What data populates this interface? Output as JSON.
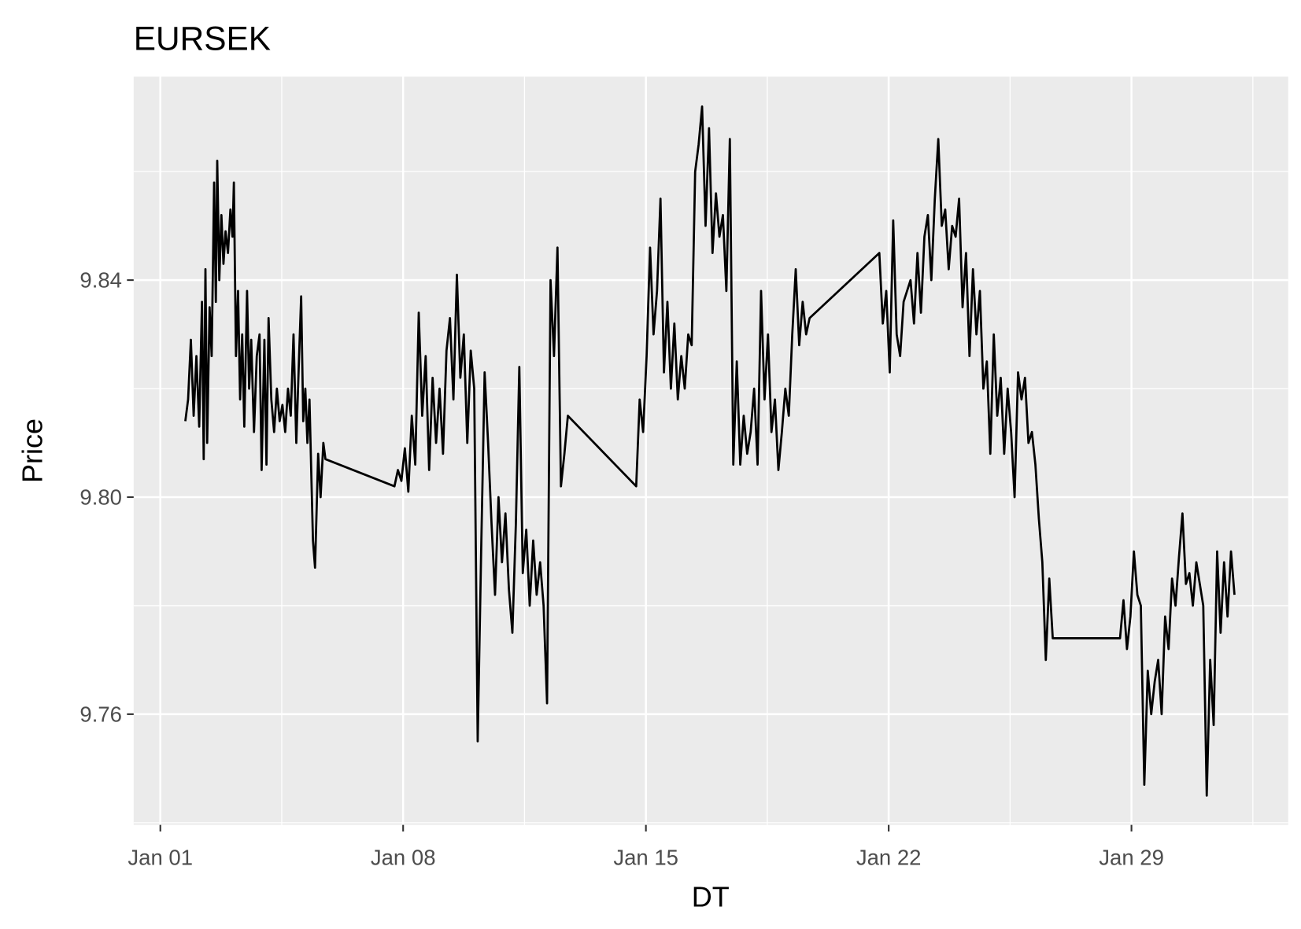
{
  "chart_data": {
    "type": "line",
    "title": "EURSEK",
    "x_label": "DT",
    "y_label": "Price",
    "color": "#000000",
    "grid": true,
    "xlim": [
      0.23,
      33.52
    ],
    "ylim": [
      9.7396,
      9.8775
    ],
    "xticks": [
      {
        "value": 1,
        "label": "Jan 01"
      },
      {
        "value": 8,
        "label": "Jan 08"
      },
      {
        "value": 15,
        "label": "Jan 15"
      },
      {
        "value": 22,
        "label": "Jan 22"
      },
      {
        "value": 29,
        "label": "Jan 29"
      }
    ],
    "yticks": [
      {
        "value": 9.76,
        "label": "9.76"
      },
      {
        "value": 9.8,
        "label": "9.80"
      },
      {
        "value": 9.84,
        "label": "9.84"
      }
    ],
    "x_minor_ticks": [
      4.5,
      11.5,
      18.5,
      25.5,
      32.5
    ],
    "y_minor_ticks": [
      9.74,
      9.78,
      9.82,
      9.86
    ],
    "x": [
      1.72,
      1.8,
      1.88,
      1.96,
      2.04,
      2.12,
      2.2,
      2.25,
      2.3,
      2.35,
      2.42,
      2.48,
      2.55,
      2.6,
      2.64,
      2.7,
      2.76,
      2.82,
      2.88,
      2.95,
      3.02,
      3.08,
      3.12,
      3.18,
      3.24,
      3.3,
      3.36,
      3.42,
      3.5,
      3.56,
      3.62,
      3.7,
      3.78,
      3.86,
      3.92,
      4.0,
      4.06,
      4.12,
      4.2,
      4.28,
      4.36,
      4.44,
      4.52,
      4.6,
      4.68,
      4.76,
      4.84,
      4.92,
      5.0,
      5.06,
      5.12,
      5.18,
      5.24,
      5.3,
      5.4,
      5.46,
      5.55,
      5.62,
      5.7,
      5.76,
      7.75,
      7.85,
      7.95,
      8.05,
      8.15,
      8.25,
      8.35,
      8.45,
      8.55,
      8.65,
      8.75,
      8.85,
      8.95,
      9.05,
      9.15,
      9.25,
      9.35,
      9.45,
      9.55,
      9.65,
      9.75,
      9.85,
      9.95,
      10.05,
      10.15,
      10.25,
      10.35,
      10.45,
      10.55,
      10.65,
      10.75,
      10.85,
      10.95,
      11.05,
      11.15,
      11.25,
      11.35,
      11.45,
      11.55,
      11.65,
      11.75,
      11.85,
      11.95,
      12.05,
      12.15,
      12.25,
      12.35,
      12.45,
      12.55,
      12.65,
      12.75,
      14.72,
      14.82,
      14.92,
      15.02,
      15.12,
      15.22,
      15.32,
      15.42,
      15.52,
      15.62,
      15.72,
      15.82,
      15.92,
      16.02,
      16.12,
      16.22,
      16.32,
      16.42,
      16.52,
      16.62,
      16.72,
      16.82,
      16.92,
      17.02,
      17.12,
      17.22,
      17.32,
      17.42,
      17.52,
      17.62,
      17.72,
      17.82,
      17.92,
      18.02,
      18.12,
      18.22,
      18.32,
      18.42,
      18.52,
      18.62,
      18.72,
      18.82,
      18.92,
      19.02,
      19.12,
      19.22,
      19.32,
      19.42,
      19.52,
      19.62,
      19.72,
      21.73,
      21.83,
      21.93,
      22.03,
      22.13,
      22.23,
      22.33,
      22.43,
      22.53,
      22.63,
      22.73,
      22.83,
      22.93,
      23.03,
      23.13,
      23.23,
      23.33,
      23.43,
      23.53,
      23.63,
      23.73,
      23.83,
      23.93,
      24.03,
      24.13,
      24.23,
      24.33,
      24.43,
      24.53,
      24.63,
      24.73,
      24.83,
      24.93,
      25.03,
      25.13,
      25.23,
      25.33,
      25.43,
      25.53,
      25.63,
      25.73,
      25.83,
      25.93,
      26.03,
      26.13,
      26.23,
      26.33,
      26.43,
      26.53,
      26.63,
      26.73,
      28.67,
      28.77,
      28.87,
      28.97,
      29.07,
      29.17,
      29.27,
      29.37,
      29.47,
      29.57,
      29.67,
      29.77,
      29.87,
      29.97,
      30.07,
      30.17,
      30.27,
      30.37,
      30.47,
      30.57,
      30.67,
      30.77,
      30.87,
      30.97,
      31.07,
      31.17,
      31.27,
      31.37,
      31.47,
      31.57,
      31.67,
      31.77,
      31.87,
      31.97
    ],
    "values": [
      9.814,
      9.818,
      9.829,
      9.815,
      9.826,
      9.813,
      9.836,
      9.807,
      9.842,
      9.81,
      9.835,
      9.826,
      9.858,
      9.836,
      9.862,
      9.84,
      9.852,
      9.843,
      9.849,
      9.845,
      9.853,
      9.848,
      9.858,
      9.826,
      9.838,
      9.818,
      9.83,
      9.813,
      9.838,
      9.82,
      9.829,
      9.812,
      9.826,
      9.83,
      9.805,
      9.829,
      9.806,
      9.833,
      9.818,
      9.812,
      9.82,
      9.814,
      9.817,
      9.812,
      9.82,
      9.815,
      9.83,
      9.81,
      9.826,
      9.837,
      9.814,
      9.82,
      9.81,
      9.818,
      9.792,
      9.787,
      9.808,
      9.8,
      9.81,
      9.807,
      9.802,
      9.805,
      9.803,
      9.809,
      9.801,
      9.815,
      9.806,
      9.834,
      9.815,
      9.826,
      9.805,
      9.822,
      9.81,
      9.82,
      9.808,
      9.827,
      9.833,
      9.818,
      9.841,
      9.822,
      9.83,
      9.81,
      9.827,
      9.82,
      9.755,
      9.79,
      9.823,
      9.81,
      9.795,
      9.782,
      9.8,
      9.788,
      9.797,
      9.783,
      9.775,
      9.795,
      9.824,
      9.786,
      9.794,
      9.78,
      9.792,
      9.782,
      9.788,
      9.78,
      9.762,
      9.84,
      9.826,
      9.846,
      9.802,
      9.808,
      9.815,
      9.802,
      9.818,
      9.812,
      9.826,
      9.846,
      9.83,
      9.838,
      9.855,
      9.823,
      9.836,
      9.82,
      9.832,
      9.818,
      9.826,
      9.82,
      9.83,
      9.828,
      9.86,
      9.865,
      9.872,
      9.85,
      9.868,
      9.845,
      9.856,
      9.848,
      9.852,
      9.838,
      9.866,
      9.806,
      9.825,
      9.806,
      9.815,
      9.808,
      9.812,
      9.82,
      9.806,
      9.838,
      9.818,
      9.83,
      9.812,
      9.818,
      9.805,
      9.812,
      9.82,
      9.815,
      9.83,
      9.842,
      9.828,
      9.836,
      9.83,
      9.833,
      9.845,
      9.832,
      9.838,
      9.823,
      9.851,
      9.83,
      9.826,
      9.836,
      9.838,
      9.84,
      9.832,
      9.845,
      9.834,
      9.848,
      9.852,
      9.84,
      9.855,
      9.866,
      9.85,
      9.853,
      9.842,
      9.85,
      9.848,
      9.855,
      9.835,
      9.845,
      9.826,
      9.842,
      9.83,
      9.838,
      9.82,
      9.825,
      9.808,
      9.83,
      9.815,
      9.822,
      9.808,
      9.82,
      9.812,
      9.8,
      9.823,
      9.818,
      9.822,
      9.81,
      9.812,
      9.806,
      9.796,
      9.788,
      9.77,
      9.785,
      9.774,
      9.774,
      9.781,
      9.772,
      9.778,
      9.79,
      9.782,
      9.78,
      9.747,
      9.768,
      9.76,
      9.766,
      9.77,
      9.76,
      9.778,
      9.772,
      9.785,
      9.78,
      9.789,
      9.797,
      9.784,
      9.786,
      9.78,
      9.788,
      9.784,
      9.78,
      9.745,
      9.77,
      9.758,
      9.79,
      9.775,
      9.788,
      9.778,
      9.79,
      9.782
    ]
  }
}
